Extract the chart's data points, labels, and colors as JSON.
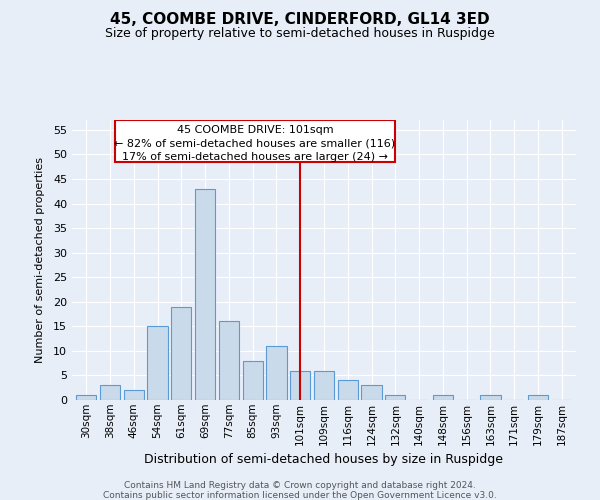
{
  "title": "45, COOMBE DRIVE, CINDERFORD, GL14 3ED",
  "subtitle": "Size of property relative to semi-detached houses in Ruspidge",
  "xlabel": "Distribution of semi-detached houses by size in Ruspidge",
  "ylabel": "Number of semi-detached properties",
  "bins": [
    "30sqm",
    "38sqm",
    "46sqm",
    "54sqm",
    "61sqm",
    "69sqm",
    "77sqm",
    "85sqm",
    "93sqm",
    "101sqm",
    "109sqm",
    "116sqm",
    "124sqm",
    "132sqm",
    "140sqm",
    "148sqm",
    "156sqm",
    "163sqm",
    "171sqm",
    "179sqm",
    "187sqm"
  ],
  "values": [
    1,
    3,
    2,
    15,
    19,
    43,
    16,
    8,
    11,
    6,
    6,
    4,
    3,
    1,
    0,
    1,
    0,
    1,
    0,
    1,
    0
  ],
  "bar_color": "#c9daea",
  "bar_edge_color": "#5b9bd5",
  "vline_x": 9,
  "vline_color": "#cc0000",
  "annotation_title": "45 COOMBE DRIVE: 101sqm",
  "annotation_line1": "← 82% of semi-detached houses are smaller (116)",
  "annotation_line2": "17% of semi-detached houses are larger (24) →",
  "annotation_box_color": "#cc0000",
  "annotation_bg": "#ffffff",
  "ylim": [
    0,
    57
  ],
  "yticks": [
    0,
    5,
    10,
    15,
    20,
    25,
    30,
    35,
    40,
    45,
    50,
    55
  ],
  "footer1": "Contains HM Land Registry data © Crown copyright and database right 2024.",
  "footer2": "Contains public sector information licensed under the Open Government Licence v3.0.",
  "bg_color": "#e8eef7"
}
